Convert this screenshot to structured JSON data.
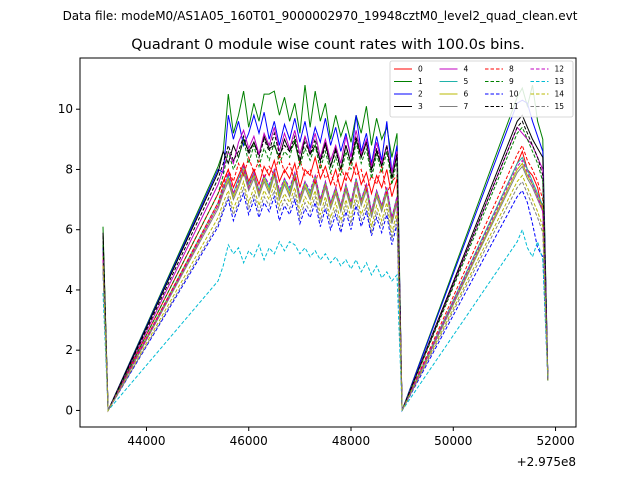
{
  "chart_data": {
    "type": "line",
    "suptitle": "Data file: modeM0/AS1A05_160T01_9000002970_19948cztM0_level2_quad_clean.evt",
    "title": "Quadrant 0 module wise count rates with 100.0s bins.",
    "xlabel": "",
    "ylabel": "",
    "x_offset_label": "+2.975e8",
    "xlim": [
      42700,
      52400
    ],
    "ylim": [
      -0.55,
      11.7
    ],
    "xticks": [
      44000,
      46000,
      48000,
      50000,
      52000
    ],
    "xtick_labels": [
      "44000",
      "46000",
      "48000",
      "50000",
      "52000"
    ],
    "yticks": [
      0,
      2,
      4,
      6,
      8,
      10
    ],
    "ytick_labels": [
      "0",
      "2",
      "4",
      "6",
      "8",
      "10"
    ],
    "grid": false,
    "legend_position": "top-right",
    "segments": [
      {
        "x0": 43150,
        "x1": 43250
      },
      {
        "x0": 45400,
        "x1": 49050
      },
      {
        "x0": 51250,
        "x1": 51950
      }
    ],
    "series": [
      {
        "name": "0",
        "color": "#ff0000",
        "style": "solid",
        "values": [
          5.2,
          0.0,
          7.2,
          7.6,
          8.0,
          7.4,
          7.8,
          8.2,
          7.6,
          8.0,
          7.5,
          8.1,
          7.8,
          8.3,
          7.6,
          8.0,
          7.7,
          8.2,
          7.4,
          8.0,
          7.8,
          8.4,
          7.7,
          8.1,
          7.5,
          8.0,
          7.3,
          7.9,
          7.6,
          8.2,
          7.5,
          7.9,
          7.2,
          7.8,
          7.4,
          8.0,
          7.1,
          7.7,
          0.0,
          8.2,
          8.6,
          8.0,
          7.8,
          7.4,
          6.6,
          1.0
        ]
      },
      {
        "name": "1",
        "color": "#008000",
        "style": "solid",
        "values": [
          6.1,
          0.0,
          8.1,
          8.6,
          10.5,
          9.2,
          9.8,
          10.6,
          9.4,
          10.2,
          9.6,
          10.5,
          10.5,
          10.6,
          9.8,
          10.4,
          9.6,
          10.2,
          9.2,
          10.8,
          9.4,
          10.6,
          9.6,
          10.2,
          9.0,
          9.8,
          9.1,
          9.6,
          8.9,
          9.8,
          9.2,
          10.1,
          8.8,
          9.7,
          9.0,
          9.4,
          8.4,
          9.2,
          0.0,
          10.4,
          10.7,
          10.1,
          10.8,
          9.6,
          9.0,
          1.0
        ]
      },
      {
        "name": "2",
        "color": "#0000ff",
        "style": "solid",
        "values": [
          5.4,
          0.0,
          8.0,
          7.9,
          9.8,
          9.0,
          9.6,
          8.8,
          9.2,
          9.8,
          9.2,
          9.9,
          9.0,
          9.6,
          8.8,
          9.5,
          9.0,
          9.7,
          8.9,
          9.6,
          8.7,
          9.4,
          8.9,
          9.7,
          8.8,
          9.4,
          8.6,
          9.2,
          8.4,
          9.8,
          8.6,
          9.2,
          8.2,
          9.1,
          8.3,
          9.6,
          7.9,
          8.8,
          0.0,
          10.2,
          10.3,
          10.2,
          9.6,
          9.1,
          8.6,
          1.0
        ]
      },
      {
        "name": "3",
        "color": "#000000",
        "style": "solid",
        "values": [
          5.9,
          0.0,
          7.9,
          8.6,
          8.2,
          8.8,
          8.4,
          9.0,
          8.6,
          8.9,
          8.5,
          9.1,
          8.7,
          8.8,
          8.4,
          9.0,
          8.6,
          8.9,
          8.2,
          9.1,
          8.5,
          8.8,
          8.3,
          8.9,
          8.1,
          8.7,
          8.0,
          8.8,
          8.2,
          9.0,
          8.4,
          8.9,
          8.0,
          8.6,
          8.1,
          8.8,
          7.7,
          8.5,
          0.0,
          9.6,
          9.8,
          9.4,
          9.0,
          8.7,
          8.4,
          1.0
        ]
      },
      {
        "name": "4",
        "color": "#c000c0",
        "style": "solid",
        "values": [
          5.3,
          0.0,
          7.5,
          8.0,
          8.6,
          8.2,
          8.9,
          9.3,
          8.7,
          9.1,
          8.5,
          9.2,
          8.8,
          9.4,
          8.6,
          9.2,
          8.7,
          9.3,
          8.5,
          9.1,
          8.6,
          9.2,
          8.4,
          9.0,
          8.3,
          8.8,
          8.2,
          9.1,
          8.4,
          9.3,
          8.5,
          9.0,
          8.1,
          8.9,
          8.2,
          8.8,
          7.9,
          8.6,
          0.0,
          9.4,
          9.2,
          9.0,
          8.8,
          8.4,
          8.0,
          1.0
        ]
      },
      {
        "name": "5",
        "color": "#20b2aa",
        "style": "solid",
        "values": [
          5.0,
          0.0,
          6.9,
          7.4,
          7.8,
          7.2,
          7.7,
          8.1,
          7.5,
          7.9,
          7.3,
          7.8,
          7.4,
          8.0,
          7.2,
          7.7,
          7.3,
          7.9,
          7.1,
          7.6,
          7.2,
          7.8,
          7.0,
          7.6,
          6.9,
          7.4,
          6.8,
          7.5,
          6.9,
          7.7,
          7.0,
          7.5,
          6.6,
          7.3,
          6.8,
          7.4,
          6.4,
          7.1,
          0.0,
          8.2,
          8.4,
          8.0,
          7.6,
          7.2,
          6.8,
          1.0
        ]
      },
      {
        "name": "6",
        "color": "#b8b800",
        "style": "solid",
        "values": [
          5.1,
          0.0,
          6.8,
          7.3,
          7.7,
          7.1,
          7.5,
          8.0,
          7.4,
          7.8,
          7.2,
          7.7,
          7.3,
          7.9,
          7.1,
          7.6,
          7.2,
          7.8,
          7.0,
          7.5,
          7.1,
          7.7,
          6.9,
          7.5,
          6.8,
          7.3,
          6.7,
          7.4,
          6.8,
          7.6,
          6.9,
          7.4,
          6.5,
          7.2,
          6.7,
          7.3,
          6.3,
          7.0,
          0.0,
          8.0,
          8.2,
          7.8,
          7.5,
          7.1,
          6.7,
          1.0
        ]
      },
      {
        "name": "7",
        "color": "#808080",
        "style": "solid",
        "values": [
          4.9,
          0.0,
          6.7,
          7.2,
          7.6,
          7.0,
          7.4,
          7.9,
          7.3,
          7.7,
          7.1,
          7.6,
          7.2,
          7.8,
          7.0,
          7.5,
          7.1,
          7.7,
          6.9,
          7.4,
          7.0,
          7.6,
          6.8,
          7.4,
          6.7,
          7.2,
          6.6,
          7.3,
          6.7,
          7.5,
          6.8,
          7.3,
          6.4,
          7.1,
          6.6,
          7.2,
          6.2,
          6.9,
          0.0,
          7.9,
          8.1,
          7.7,
          7.4,
          7.0,
          6.6,
          1.0
        ]
      },
      {
        "name": "8",
        "color": "#ff0000",
        "style": "dashed",
        "values": [
          5.0,
          0.0,
          6.9,
          7.5,
          8.0,
          7.6,
          8.2,
          7.8,
          8.4,
          7.9,
          8.3,
          7.7,
          8.1,
          7.8,
          8.5,
          7.9,
          8.2,
          7.6,
          8.3,
          7.8,
          8.0,
          7.5,
          8.2,
          7.7,
          7.9,
          7.4,
          8.1,
          7.6,
          8.3,
          7.8,
          8.0,
          7.3,
          7.8,
          7.5,
          8.1,
          7.2,
          7.6,
          7.8,
          0.0,
          8.5,
          8.8,
          8.3,
          8.0,
          7.6,
          7.0,
          1.0
        ]
      },
      {
        "name": "9",
        "color": "#008000",
        "style": "dashed",
        "values": [
          5.5,
          0.0,
          7.2,
          7.8,
          8.6,
          8.0,
          8.4,
          9.0,
          8.2,
          8.8,
          8.1,
          8.7,
          8.3,
          8.9,
          8.2,
          8.6,
          8.4,
          9.0,
          8.1,
          8.7,
          8.3,
          8.8,
          8.0,
          8.6,
          7.9,
          8.4,
          7.8,
          8.6,
          8.0,
          8.9,
          8.2,
          8.7,
          7.7,
          8.5,
          7.9,
          8.6,
          7.5,
          8.3,
          0.0,
          9.2,
          9.4,
          9.0,
          8.6,
          8.2,
          7.6,
          1.0
        ]
      },
      {
        "name": "10",
        "color": "#0000ff",
        "style": "dashed",
        "values": [
          4.6,
          0.0,
          6.1,
          6.6,
          7.0,
          6.3,
          6.8,
          7.2,
          6.5,
          7.0,
          6.4,
          6.9,
          6.6,
          7.1,
          6.3,
          6.8,
          6.5,
          7.0,
          6.2,
          6.7,
          6.4,
          6.9,
          6.1,
          6.7,
          6.0,
          6.5,
          5.9,
          6.6,
          6.0,
          6.8,
          6.1,
          6.6,
          5.8,
          6.4,
          5.9,
          6.5,
          5.5,
          6.2,
          0.0,
          7.1,
          7.3,
          6.9,
          6.2,
          5.4,
          5.1,
          1.0
        ]
      },
      {
        "name": "11",
        "color": "#000000",
        "style": "dashed",
        "values": [
          5.8,
          0.0,
          7.7,
          8.2,
          8.8,
          8.3,
          8.6,
          9.1,
          8.5,
          8.9,
          8.4,
          9.0,
          8.6,
          9.2,
          8.5,
          8.8,
          8.6,
          9.1,
          8.3,
          8.9,
          8.5,
          9.0,
          8.2,
          8.8,
          8.1,
          8.6,
          8.0,
          8.8,
          8.2,
          9.1,
          8.4,
          8.9,
          7.9,
          8.7,
          8.1,
          8.8,
          7.7,
          8.5,
          0.0,
          9.4,
          9.6,
          9.2,
          8.8,
          8.4,
          7.8,
          1.0
        ]
      },
      {
        "name": "12",
        "color": "#c000c0",
        "style": "dashed",
        "values": [
          5.0,
          0.0,
          6.8,
          7.3,
          7.9,
          7.2,
          7.6,
          8.1,
          7.4,
          7.9,
          7.3,
          7.8,
          7.5,
          8.0,
          7.3,
          7.7,
          7.4,
          7.9,
          7.1,
          7.6,
          7.3,
          7.8,
          7.0,
          7.6,
          6.9,
          7.4,
          6.8,
          7.5,
          6.9,
          7.7,
          7.0,
          7.5,
          6.6,
          7.3,
          6.8,
          7.4,
          6.4,
          7.1,
          0.0,
          8.1,
          8.3,
          7.9,
          7.5,
          7.1,
          6.6,
          1.0
        ]
      },
      {
        "name": "13",
        "color": "#00bcd4",
        "style": "dashed",
        "values": [
          3.9,
          0.0,
          4.3,
          4.8,
          5.5,
          5.2,
          5.4,
          4.9,
          5.3,
          5.1,
          5.5,
          5.0,
          5.4,
          5.2,
          5.6,
          5.3,
          5.6,
          5.5,
          5.2,
          5.4,
          5.1,
          5.3,
          5.0,
          5.2,
          4.9,
          5.1,
          4.8,
          5.0,
          4.7,
          5.0,
          4.6,
          4.9,
          4.5,
          4.8,
          4.4,
          4.6,
          4.3,
          4.5,
          0.0,
          5.6,
          6.0,
          5.4,
          5.1,
          5.6,
          5.0,
          1.0
        ]
      },
      {
        "name": "14",
        "color": "#b8b800",
        "style": "dashed",
        "values": [
          4.8,
          0.0,
          6.4,
          6.9,
          7.3,
          6.7,
          7.1,
          7.6,
          6.9,
          7.4,
          6.8,
          7.3,
          7.0,
          7.5,
          6.8,
          7.2,
          6.9,
          7.4,
          6.6,
          7.1,
          6.8,
          7.3,
          6.5,
          7.1,
          6.4,
          6.9,
          6.3,
          7.0,
          6.4,
          7.2,
          6.5,
          7.0,
          6.1,
          6.8,
          6.3,
          6.9,
          5.9,
          6.6,
          0.0,
          7.6,
          7.8,
          7.4,
          7.0,
          6.6,
          6.1,
          1.0
        ]
      },
      {
        "name": "15",
        "color": "#808080",
        "style": "dashed",
        "values": [
          4.7,
          0.0,
          6.2,
          6.7,
          7.1,
          6.5,
          6.9,
          7.4,
          6.7,
          7.2,
          6.6,
          7.1,
          6.8,
          7.3,
          6.6,
          7.0,
          6.7,
          7.2,
          6.4,
          6.9,
          6.6,
          7.1,
          6.3,
          6.9,
          6.2,
          6.7,
          6.1,
          6.8,
          6.2,
          7.0,
          6.3,
          6.8,
          5.9,
          6.6,
          6.1,
          6.7,
          5.7,
          6.4,
          0.0,
          7.4,
          7.6,
          7.2,
          6.8,
          6.4,
          5.9,
          1.0
        ]
      }
    ]
  }
}
